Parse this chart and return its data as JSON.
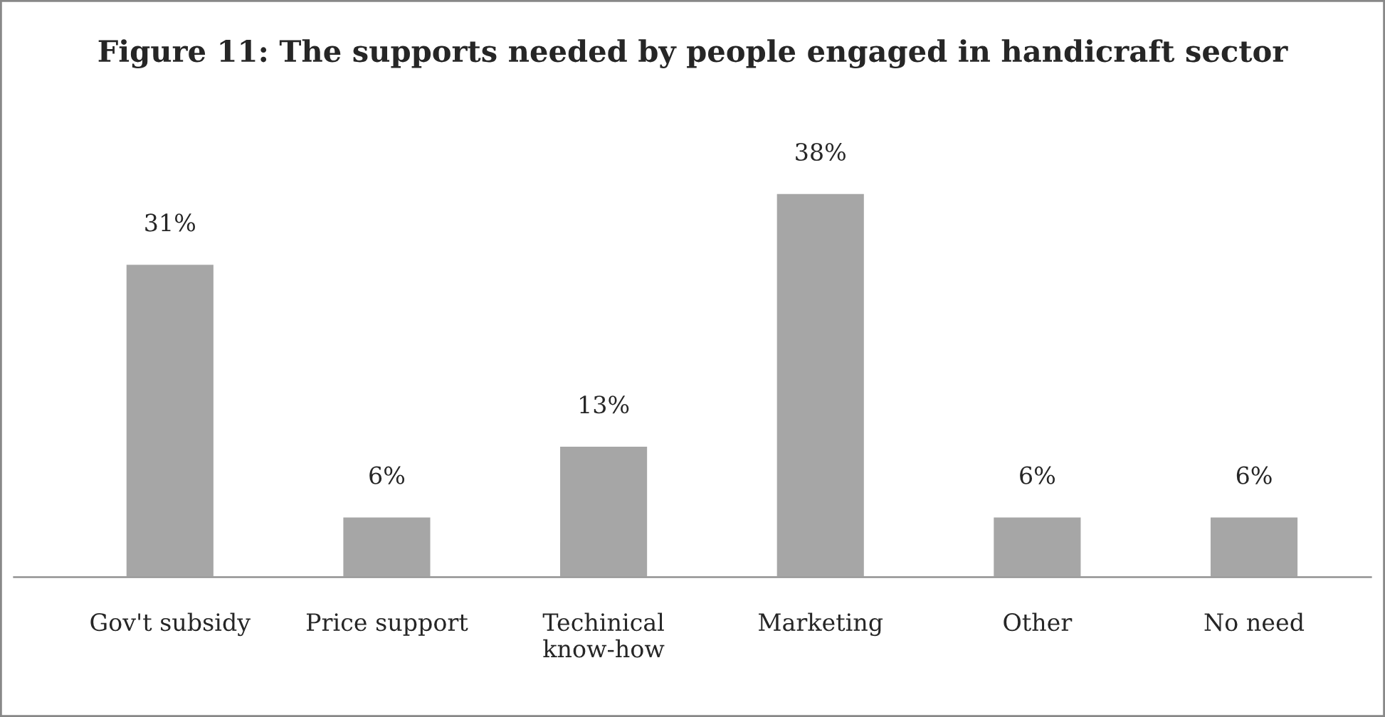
{
  "chart_data": {
    "type": "bar",
    "title": "Figure 11: The supports needed by people engaged in handicraft sector",
    "categories": [
      "Gov't subsidy",
      "Price support",
      "Techinical\nknow-how",
      "Marketing",
      "Other",
      "No need"
    ],
    "values": [
      31,
      6,
      13,
      38,
      6,
      6
    ],
    "value_labels": [
      "31%",
      "6%",
      "13%",
      "38%",
      "6%",
      "6%"
    ],
    "color": "#a6a6a6",
    "tick_labels": "x",
    "grid": false,
    "legend": false
  }
}
